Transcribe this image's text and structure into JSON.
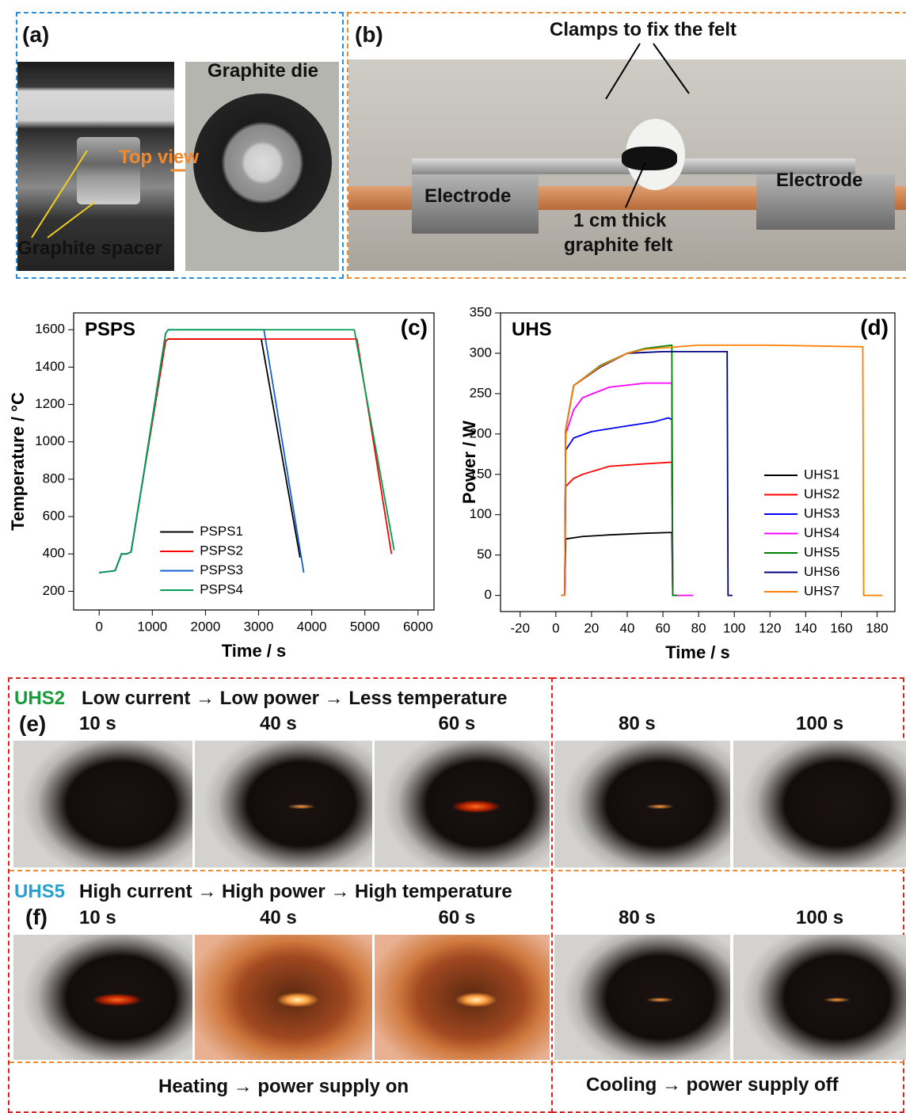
{
  "panel_a": {
    "label": "(a)",
    "die_label": "Graphite die",
    "arrow_label": "Top view",
    "spacer_label": "Graphite spacer"
  },
  "panel_b": {
    "label": "(b)",
    "clamp_label": "Clamps to fix the felt",
    "electrode_left": "Electrode",
    "electrode_right": "Electrode",
    "felt_label": [
      "1 cm thick",
      "graphite felt"
    ]
  },
  "chart_data": [
    {
      "type": "line",
      "panel_label": "(c)",
      "annotation": "PSPS",
      "x_label": "Time / s",
      "y_label": "Temperature / °C",
      "xlim": [
        -480,
        6300
      ],
      "ylim": [
        100,
        1690
      ],
      "xticks": [
        0,
        1000,
        2000,
        3000,
        4000,
        5000,
        6000
      ],
      "yticks": [
        200,
        400,
        600,
        800,
        1000,
        1200,
        1400,
        1600
      ],
      "legend": "lower center",
      "series": [
        {
          "name": "PSPS1",
          "color": "#000000",
          "x": [
            0,
            300,
            420,
            520,
            600,
            800,
            1250,
            1300,
            3050,
            3780
          ],
          "values": [
            300,
            310,
            400,
            400,
            410,
            760,
            1540,
            1550,
            1550,
            380
          ]
        },
        {
          "name": "PSPS2",
          "color": "#ff0000",
          "x": [
            0,
            300,
            420,
            520,
            600,
            800,
            1250,
            1300,
            4850,
            5500
          ],
          "values": [
            300,
            310,
            400,
            400,
            410,
            760,
            1540,
            1550,
            1550,
            400
          ]
        },
        {
          "name": "PSPS3",
          "color": "#1560d0",
          "x": [
            0,
            300,
            420,
            520,
            600,
            800,
            1250,
            1300,
            3100,
            3850
          ],
          "values": [
            300,
            310,
            400,
            400,
            410,
            760,
            1580,
            1600,
            1600,
            300
          ]
        },
        {
          "name": "PSPS4",
          "color": "#009e50",
          "x": [
            0,
            300,
            420,
            520,
            600,
            800,
            1250,
            1300,
            4800,
            5550
          ],
          "values": [
            300,
            310,
            400,
            400,
            410,
            760,
            1580,
            1600,
            1600,
            420
          ]
        }
      ]
    },
    {
      "type": "line",
      "panel_label": "(d)",
      "annotation": "UHS",
      "x_label": "Time / s",
      "y_label": "Power / W",
      "xlim": [
        -31,
        190
      ],
      "ylim": [
        -20,
        350
      ],
      "xticks": [
        -20,
        0,
        20,
        40,
        60,
        80,
        100,
        120,
        140,
        160,
        180
      ],
      "yticks": [
        0,
        50,
        100,
        150,
        200,
        250,
        300,
        350
      ],
      "legend": "lower right",
      "series": [
        {
          "name": "UHS1",
          "color": "#000000",
          "x": [
            3,
            5,
            5.5,
            15,
            30,
            50,
            65,
            65.5,
            68
          ],
          "values": [
            0,
            0,
            70,
            73,
            75,
            77,
            78,
            0,
            0
          ]
        },
        {
          "name": "UHS2",
          "color": "#ff0000",
          "x": [
            3,
            5,
            5.5,
            10,
            15,
            30,
            50,
            65,
            65.5,
            68
          ],
          "values": [
            0,
            0,
            135,
            145,
            150,
            160,
            163,
            165,
            0,
            0
          ]
        },
        {
          "name": "UHS3",
          "color": "#0000ff",
          "x": [
            3,
            5,
            5.5,
            10,
            20,
            40,
            55,
            63,
            65,
            65.5,
            68
          ],
          "values": [
            0,
            0,
            180,
            195,
            203,
            210,
            215,
            220,
            218,
            0,
            0
          ]
        },
        {
          "name": "UHS4",
          "color": "#ff00ff",
          "x": [
            3,
            5,
            5.5,
            10,
            15,
            30,
            50,
            65,
            65.5,
            77
          ],
          "values": [
            0,
            0,
            200,
            230,
            245,
            258,
            263,
            263,
            0,
            0
          ]
        },
        {
          "name": "UHS5",
          "color": "#008000",
          "x": [
            3,
            5,
            5.5,
            10,
            25,
            40,
            50,
            65,
            65.5,
            68
          ],
          "values": [
            0,
            0,
            205,
            260,
            285,
            300,
            306,
            310,
            0,
            0
          ]
        },
        {
          "name": "UHS6",
          "color": "#000080",
          "x": [
            3,
            5,
            5.5,
            10,
            25,
            40,
            60,
            96,
            96.5,
            99
          ],
          "values": [
            0,
            0,
            205,
            260,
            283,
            300,
            302,
            302,
            0,
            0
          ]
        },
        {
          "name": "UHS7",
          "color": "#ff8000",
          "x": [
            3,
            5,
            5.5,
            10,
            25,
            40,
            50,
            80,
            120,
            172,
            172.5,
            183
          ],
          "values": [
            0,
            0,
            205,
            260,
            284,
            300,
            305,
            310,
            310,
            308,
            0,
            0
          ]
        }
      ]
    }
  ],
  "panel_e": {
    "sample": "UHS2",
    "caption": "Low current → Low power → Less temperature",
    "label": "(e)",
    "times": [
      "10 s",
      "40 s",
      "60 s",
      "80 s",
      "100 s"
    ]
  },
  "panel_f": {
    "sample": "UHS5",
    "caption": "High current → High power → High temperature",
    "label": "(f)",
    "times": [
      "10 s",
      "40 s",
      "60 s",
      "80 s",
      "100 s"
    ]
  },
  "footer": {
    "heating": "Heating → power supply on",
    "cooling": "Cooling → power supply off"
  }
}
